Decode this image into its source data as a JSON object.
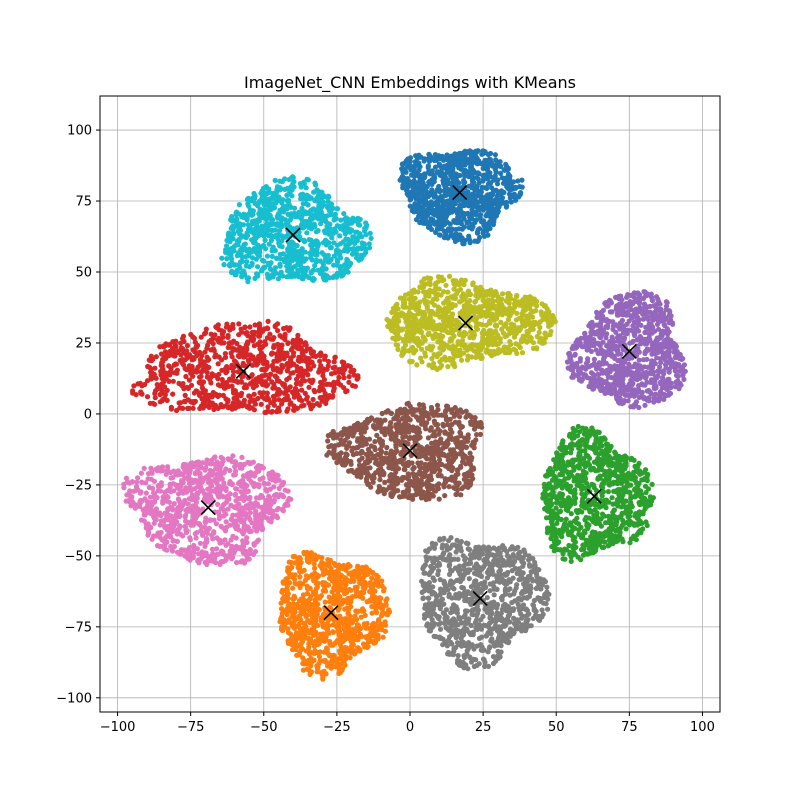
{
  "chart_data": {
    "type": "scatter",
    "title": "ImageNet_CNN Embeddings with KMeans",
    "xlabel": "",
    "ylabel": "",
    "xlim": [
      -106,
      106
    ],
    "ylim": [
      -105,
      112
    ],
    "xticks": [
      -100,
      -75,
      -50,
      -25,
      0,
      25,
      50,
      75,
      100
    ],
    "yticks": [
      -100,
      -75,
      -50,
      -25,
      0,
      25,
      50,
      75,
      100
    ],
    "grid": true,
    "clusters": [
      {
        "id": 0,
        "color": "#1f77b4",
        "centroid": [
          17,
          78
        ],
        "spread": [
          20,
          16
        ]
      },
      {
        "id": 1,
        "color": "#ff7f0e",
        "centroid": [
          -27,
          -70
        ],
        "spread": [
          19,
          21
        ]
      },
      {
        "id": 2,
        "color": "#2ca02c",
        "centroid": [
          63,
          -29
        ],
        "spread": [
          19,
          22
        ]
      },
      {
        "id": 3,
        "color": "#d62728",
        "centroid": [
          -57,
          15
        ],
        "spread": [
          37,
          16
        ]
      },
      {
        "id": 4,
        "color": "#9467bd",
        "centroid": [
          75,
          22
        ],
        "spread": [
          19,
          20
        ]
      },
      {
        "id": 5,
        "color": "#8c564b",
        "centroid": [
          0,
          -13
        ],
        "spread": [
          26,
          17
        ]
      },
      {
        "id": 6,
        "color": "#e377c2",
        "centroid": [
          -69,
          -33
        ],
        "spread": [
          27,
          19
        ]
      },
      {
        "id": 7,
        "color": "#7f7f7f",
        "centroid": [
          24,
          -65
        ],
        "spread": [
          22,
          22
        ]
      },
      {
        "id": 8,
        "color": "#bcbd22",
        "centroid": [
          19,
          32
        ],
        "spread": [
          29,
          15
        ]
      },
      {
        "id": 9,
        "color": "#17becf",
        "centroid": [
          -40,
          63
        ],
        "spread": [
          25,
          18
        ]
      }
    ],
    "centroid_marker": "x",
    "centroid_color": "#000000"
  }
}
